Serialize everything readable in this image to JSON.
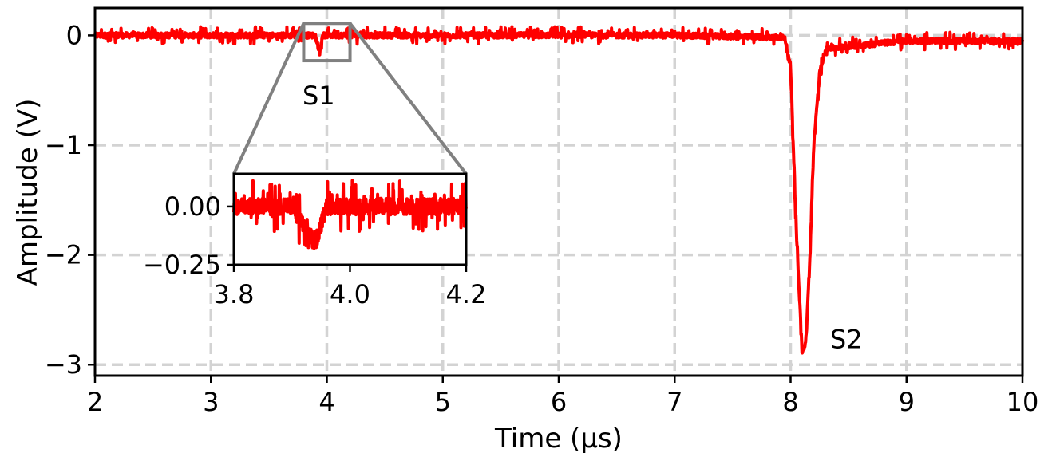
{
  "chart_data": {
    "type": "line",
    "xlabel": "Time (μs)",
    "ylabel": "Amplitude (V)",
    "xlim": [
      2,
      10
    ],
    "ylim": [
      -3.1,
      0.25
    ],
    "x_ticks": [
      "2",
      "3",
      "4",
      "5",
      "6",
      "7",
      "8",
      "9",
      "10"
    ],
    "y_ticks": [
      "0",
      "−1",
      "−2",
      "−3"
    ],
    "grid": true,
    "line_color": "#ff0000",
    "series": [
      {
        "noise_amplitude": 0.05,
        "x": [
          2.0,
          3.0,
          3.9,
          3.94,
          3.96,
          4.0,
          5.0,
          6.0,
          7.0,
          7.95,
          8.0,
          8.05,
          8.1,
          8.13,
          8.16,
          8.2,
          8.25,
          8.3,
          9.0,
          10.0
        ],
        "y": [
          0.0,
          0.0,
          0.0,
          -0.16,
          0.0,
          0.0,
          0.0,
          0.0,
          0.0,
          -0.02,
          -0.3,
          -1.8,
          -2.9,
          -2.8,
          -2.2,
          -1.0,
          -0.35,
          -0.12,
          -0.05,
          -0.05
        ]
      }
    ],
    "annotations": [
      {
        "text": "S1",
        "x": 3.93,
        "y": -0.55
      },
      {
        "text": "S2",
        "x": 8.48,
        "y": -2.77
      }
    ],
    "zoom_box": {
      "xlim": [
        3.8,
        4.2
      ],
      "ylim": [
        -0.23,
        0.11
      ]
    },
    "inset": {
      "xlim": [
        3.8,
        4.2
      ],
      "ylim": [
        -0.25,
        0.14
      ],
      "x_ticks": [
        "3.8",
        "4.0",
        "4.2"
      ],
      "y_ticks": [
        "0.00",
        "−0.25"
      ],
      "grid": false
    }
  }
}
